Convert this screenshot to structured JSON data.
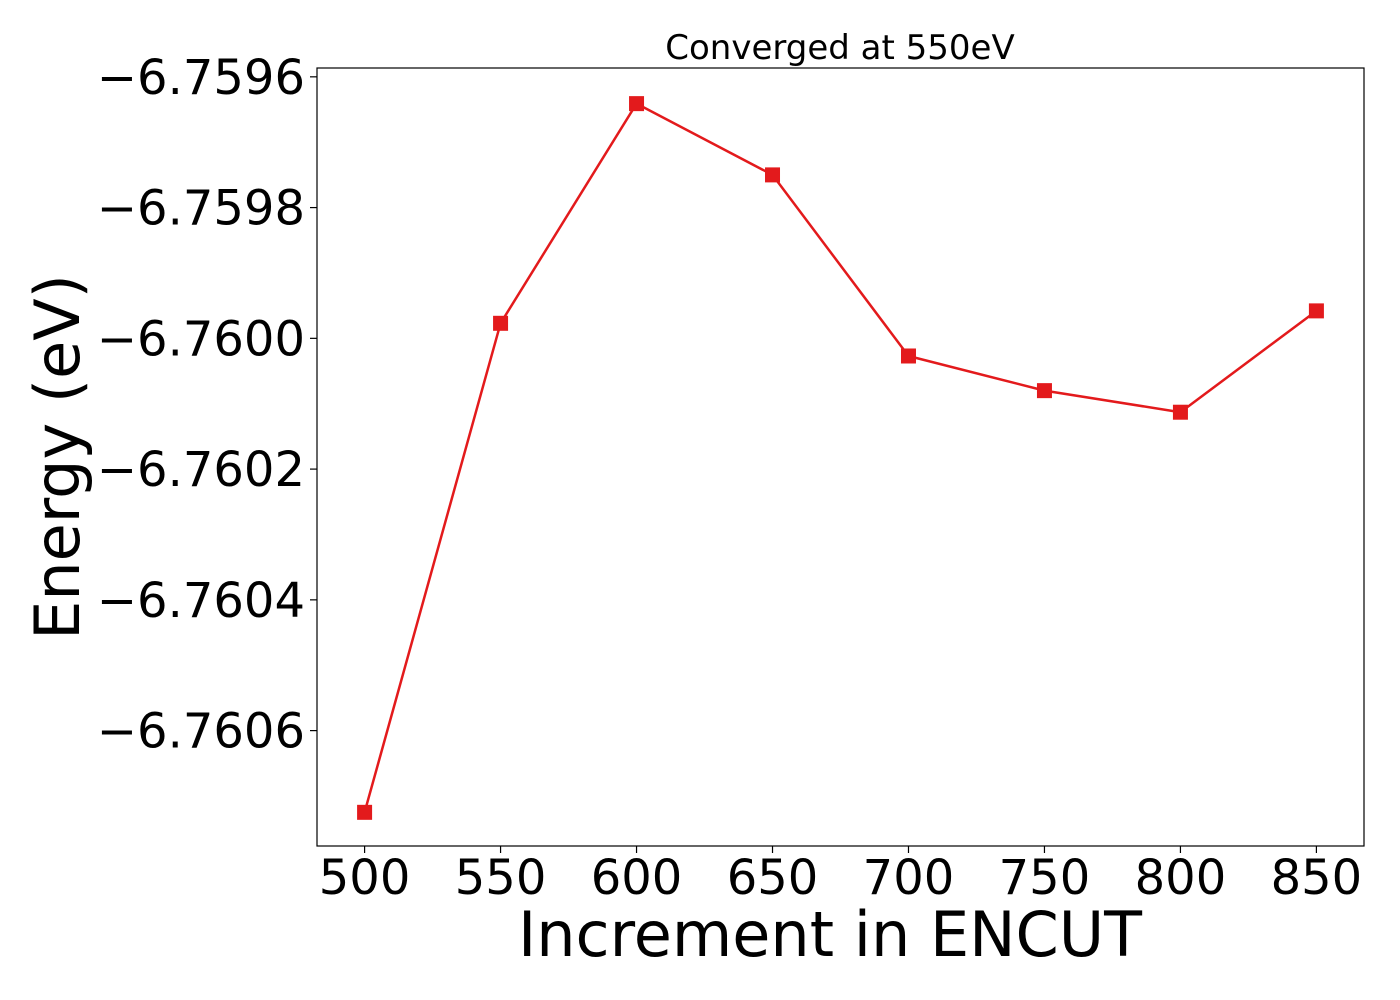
{
  "chart_data": {
    "type": "line",
    "title": "Converged at 550eV",
    "xlabel": "Increment in ENCUT",
    "ylabel": "Energy (eV)",
    "x": [
      500,
      550,
      600,
      650,
      700,
      750,
      800,
      850
    ],
    "series": [
      {
        "values": [
          -6.760725,
          -6.759977,
          -6.759641,
          -6.75975,
          -6.760027,
          -6.76008,
          -6.760113,
          -6.759958
        ],
        "color": "#e31a1c",
        "marker": "square"
      }
    ],
    "x_ticks": [
      500,
      550,
      600,
      650,
      700,
      750,
      800,
      850
    ],
    "x_tick_labels": [
      "500",
      "550",
      "600",
      "650",
      "700",
      "750",
      "800",
      "850"
    ],
    "y_ticks": [
      -6.7596,
      -6.7598,
      -6.76,
      -6.7602,
      -6.7604,
      -6.7606
    ],
    "y_tick_labels": [
      "−6.7596",
      "−6.7598",
      "−6.7600",
      "−6.7602",
      "−6.7604",
      "−6.7606"
    ],
    "xlim": [
      482.5,
      867.5
    ],
    "ylim": [
      -6.7607765,
      -6.7595865
    ],
    "grid": false,
    "legend": "none"
  }
}
